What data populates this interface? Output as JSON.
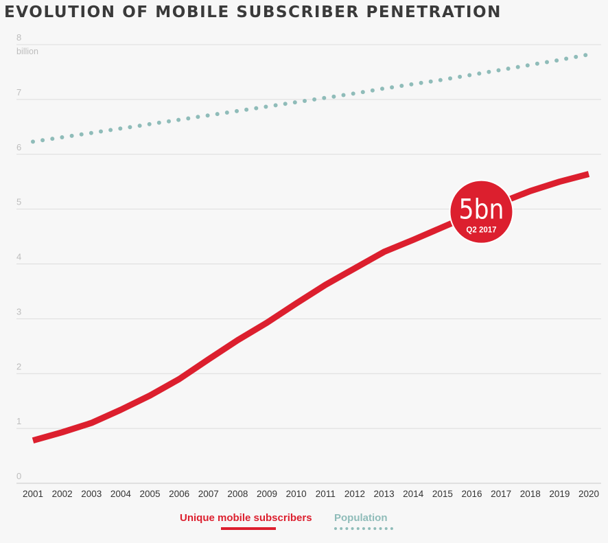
{
  "chart_data": {
    "type": "line",
    "title": "EVOLUTION OF MOBILE SUBSCRIBER PENETRATION",
    "ylabel": "billion",
    "ylim": [
      0,
      8
    ],
    "yticks": [
      0,
      1,
      2,
      3,
      4,
      5,
      6,
      7,
      8
    ],
    "x": [
      "2001",
      "2002",
      "2003",
      "2004",
      "2005",
      "2006",
      "2007",
      "2008",
      "2009",
      "2010",
      "2011",
      "2012",
      "2013",
      "2014",
      "2015",
      "2016",
      "2017",
      "2018",
      "2019",
      "2020"
    ],
    "grid": "horizontal",
    "legend_position": "bottom-center",
    "series": [
      {
        "name": "Unique mobile subscribers",
        "style": "solid",
        "color": "#dc1f2e",
        "values": [
          0.78,
          0.93,
          1.1,
          1.34,
          1.6,
          1.9,
          2.26,
          2.61,
          2.93,
          3.28,
          3.62,
          3.92,
          4.22,
          4.44,
          4.67,
          4.9,
          5.12,
          5.33,
          5.5,
          5.64
        ]
      },
      {
        "name": "Population",
        "style": "dotted",
        "color": "#8fbcb9",
        "values": [
          6.23,
          6.31,
          6.39,
          6.47,
          6.55,
          6.63,
          6.71,
          6.79,
          6.87,
          6.95,
          7.03,
          7.11,
          7.2,
          7.28,
          7.36,
          7.45,
          7.54,
          7.63,
          7.72,
          7.82
        ]
      }
    ],
    "annotation": {
      "value": "5bn",
      "label": "Q2 2017",
      "x": "2016",
      "y": 4.95,
      "color": "#dc1f2e"
    }
  }
}
